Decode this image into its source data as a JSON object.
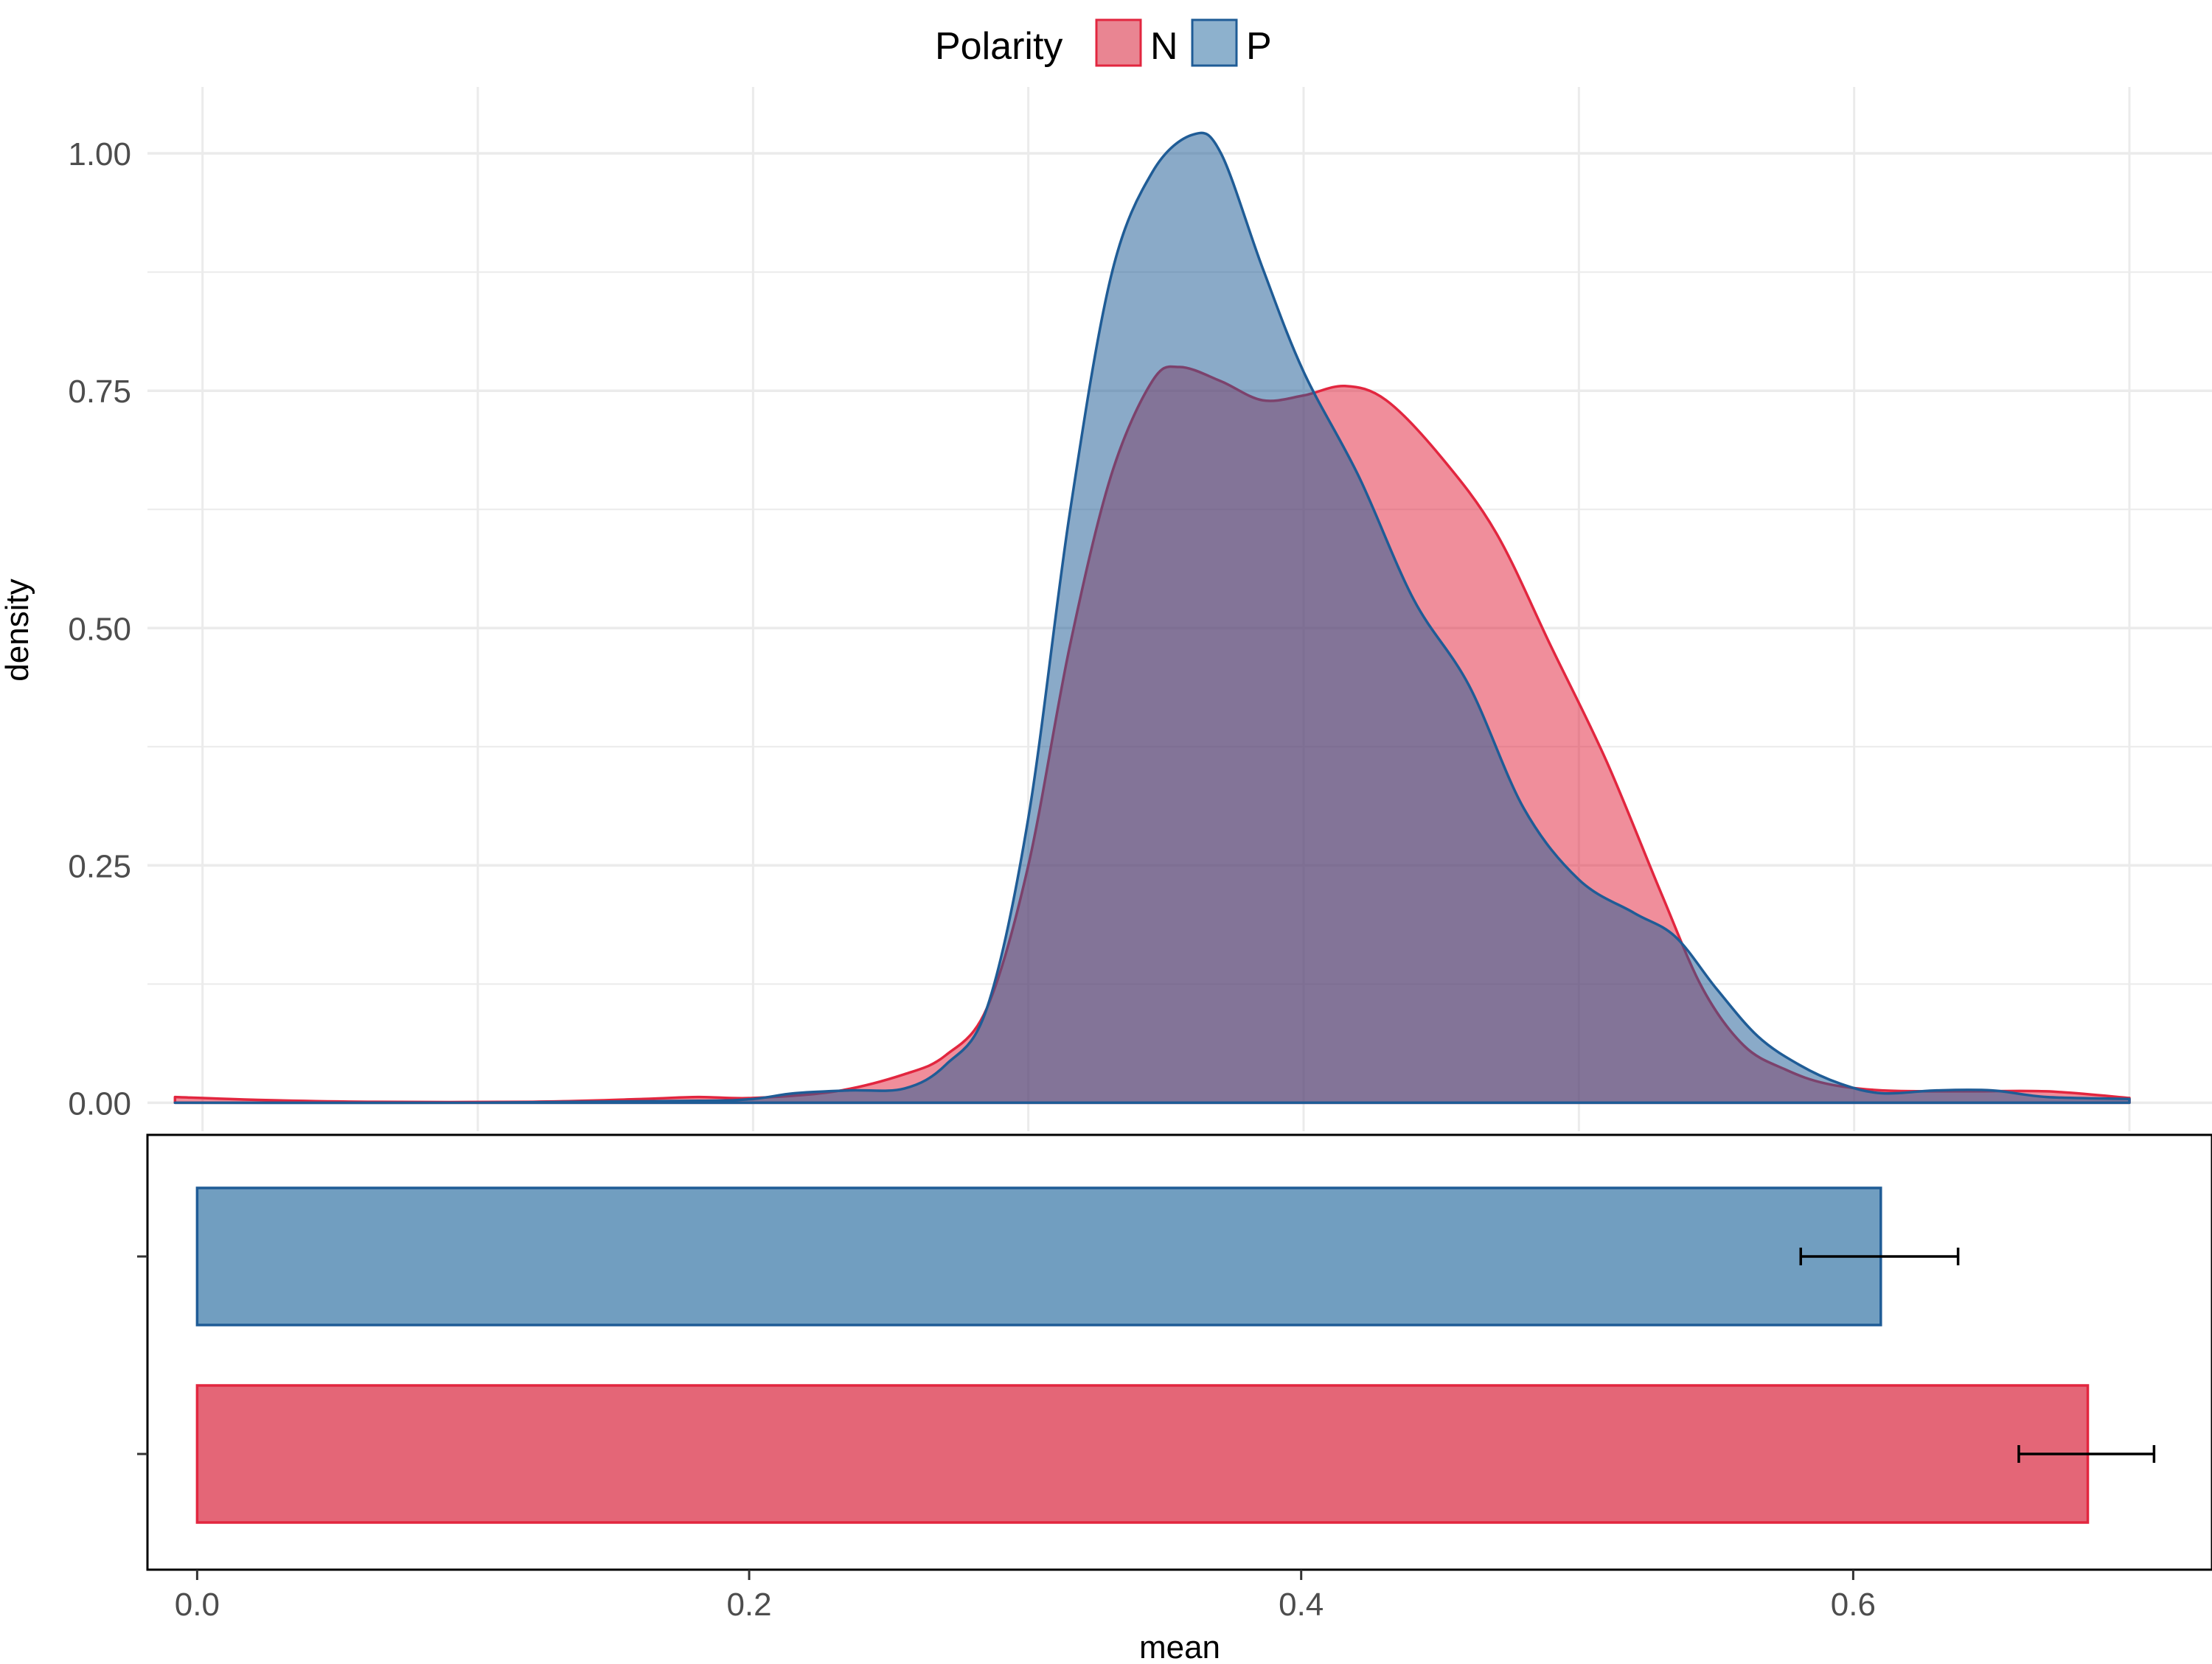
{
  "legend": {
    "title": "Polarity",
    "position": "top",
    "items": [
      "N",
      "P"
    ]
  },
  "colors": {
    "N": "#E2263F",
    "P": "#1F5C96",
    "N_bar": "#E46677",
    "P_bar": "#719EC0",
    "overlap": "#7F6C8D",
    "grid": "#EBEBEB"
  },
  "chart_data": [
    {
      "type": "area",
      "kind": "density",
      "xlabel": "",
      "ylabel": "density",
      "xlim": [
        -0.02,
        0.73
      ],
      "ylim": [
        -0.03,
        1.07
      ],
      "x_grid": [
        0.0,
        0.1,
        0.2,
        0.3,
        0.4,
        0.5,
        0.6,
        0.7,
        0.8,
        0.9
      ],
      "yticks": [
        0.0,
        0.25,
        0.5,
        0.75,
        1.0
      ],
      "ytick_labels": [
        "0.00",
        "0.25",
        "0.50",
        "0.75",
        "1.00"
      ],
      "grid": true,
      "series": [
        {
          "name": "N",
          "points": [
            [
              -0.01,
              0.006
            ],
            [
              0.02,
              0.003
            ],
            [
              0.06,
              0.001
            ],
            [
              0.12,
              0.001
            ],
            [
              0.16,
              0.004
            ],
            [
              0.18,
              0.006
            ],
            [
              0.2,
              0.005
            ],
            [
              0.23,
              0.012
            ],
            [
              0.255,
              0.03
            ],
            [
              0.27,
              0.05
            ],
            [
              0.285,
              0.1
            ],
            [
              0.3,
              0.25
            ],
            [
              0.315,
              0.48
            ],
            [
              0.33,
              0.66
            ],
            [
              0.345,
              0.76
            ],
            [
              0.355,
              0.775
            ],
            [
              0.37,
              0.76
            ],
            [
              0.385,
              0.74
            ],
            [
              0.4,
              0.745
            ],
            [
              0.415,
              0.755
            ],
            [
              0.43,
              0.74
            ],
            [
              0.45,
              0.68
            ],
            [
              0.47,
              0.6
            ],
            [
              0.49,
              0.48
            ],
            [
              0.51,
              0.36
            ],
            [
              0.53,
              0.22
            ],
            [
              0.545,
              0.12
            ],
            [
              0.56,
              0.06
            ],
            [
              0.575,
              0.035
            ],
            [
              0.59,
              0.02
            ],
            [
              0.61,
              0.013
            ],
            [
              0.64,
              0.012
            ],
            [
              0.67,
              0.012
            ],
            [
              0.7,
              0.005
            ]
          ]
        },
        {
          "name": "P",
          "points": [
            [
              -0.01,
              0.0
            ],
            [
              0.1,
              0.0
            ],
            [
              0.18,
              0.002
            ],
            [
              0.2,
              0.004
            ],
            [
              0.215,
              0.01
            ],
            [
              0.235,
              0.013
            ],
            [
              0.255,
              0.015
            ],
            [
              0.27,
              0.04
            ],
            [
              0.285,
              0.1
            ],
            [
              0.3,
              0.3
            ],
            [
              0.315,
              0.62
            ],
            [
              0.33,
              0.87
            ],
            [
              0.345,
              0.98
            ],
            [
              0.36,
              1.02
            ],
            [
              0.37,
              1.0
            ],
            [
              0.385,
              0.88
            ],
            [
              0.4,
              0.77
            ],
            [
              0.42,
              0.66
            ],
            [
              0.44,
              0.53
            ],
            [
              0.46,
              0.44
            ],
            [
              0.48,
              0.31
            ],
            [
              0.5,
              0.235
            ],
            [
              0.52,
              0.2
            ],
            [
              0.535,
              0.175
            ],
            [
              0.55,
              0.12
            ],
            [
              0.565,
              0.07
            ],
            [
              0.58,
              0.04
            ],
            [
              0.595,
              0.02
            ],
            [
              0.61,
              0.01
            ],
            [
              0.63,
              0.013
            ],
            [
              0.65,
              0.013
            ],
            [
              0.67,
              0.006
            ],
            [
              0.7,
              0.004
            ]
          ]
        }
      ]
    },
    {
      "type": "bar",
      "orientation": "horizontal",
      "xlabel": "mean",
      "ylabel": "",
      "xlim": [
        -0.018,
        0.73
      ],
      "xticks": [
        0.0,
        0.2,
        0.4,
        0.6
      ],
      "xtick_labels": [
        "0.0",
        "0.2",
        "0.4",
        "0.6"
      ],
      "series": [
        {
          "name": "P",
          "value": 0.61,
          "error_low": 0.581,
          "error_high": 0.638
        },
        {
          "name": "N",
          "value": 0.685,
          "error_low": 0.66,
          "error_high": 0.709
        }
      ]
    }
  ]
}
